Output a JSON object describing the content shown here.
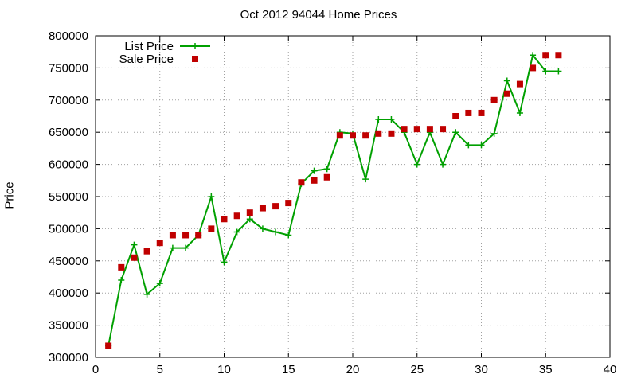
{
  "chart_data": {
    "type": "line",
    "title": "Oct 2012 94044 Home Prices",
    "xlabel": "",
    "ylabel": "Price",
    "xlim": [
      0,
      40
    ],
    "ylim": [
      300000,
      800000
    ],
    "xticks": [
      0,
      5,
      10,
      15,
      20,
      25,
      30,
      35,
      40
    ],
    "yticks": [
      300000,
      350000,
      400000,
      450000,
      500000,
      550000,
      600000,
      650000,
      700000,
      750000,
      800000
    ],
    "grid": true,
    "legend_position": "top-left",
    "series": [
      {
        "name": "List Price",
        "style": "line-cross",
        "color": "#00a000",
        "x": [
          1,
          2,
          3,
          4,
          5,
          6,
          7,
          8,
          9,
          10,
          11,
          12,
          13,
          14,
          15,
          16,
          17,
          18,
          19,
          20,
          21,
          22,
          23,
          24,
          25,
          26,
          27,
          28,
          29,
          30,
          31,
          32,
          33,
          34,
          35,
          36
        ],
        "values": [
          318000,
          420000,
          475000,
          398000,
          415000,
          470000,
          470000,
          490000,
          550000,
          448000,
          495000,
          515000,
          500000,
          495000,
          490000,
          570000,
          590000,
          593000,
          650000,
          648000,
          577000,
          670000,
          670000,
          650000,
          600000,
          650000,
          600000,
          650000,
          630000,
          630000,
          648000,
          730000,
          680000,
          770000,
          745000,
          745000
        ]
      },
      {
        "name": "Sale Price",
        "style": "square-marker",
        "color": "#c00000",
        "x": [
          1,
          2,
          3,
          4,
          5,
          6,
          7,
          8,
          9,
          10,
          11,
          12,
          13,
          14,
          15,
          16,
          17,
          18,
          19,
          20,
          21,
          22,
          23,
          24,
          25,
          26,
          27,
          28,
          29,
          30,
          31,
          32,
          33,
          34,
          35,
          36
        ],
        "values": [
          318000,
          440000,
          455000,
          465000,
          478000,
          490000,
          490000,
          490000,
          500000,
          515000,
          520000,
          525000,
          532000,
          535000,
          540000,
          572000,
          575000,
          580000,
          645000,
          645000,
          645000,
          648000,
          648000,
          655000,
          655000,
          655000,
          655000,
          675000,
          680000,
          680000,
          700000,
          710000,
          725000,
          750000,
          770000,
          770000
        ]
      }
    ]
  }
}
